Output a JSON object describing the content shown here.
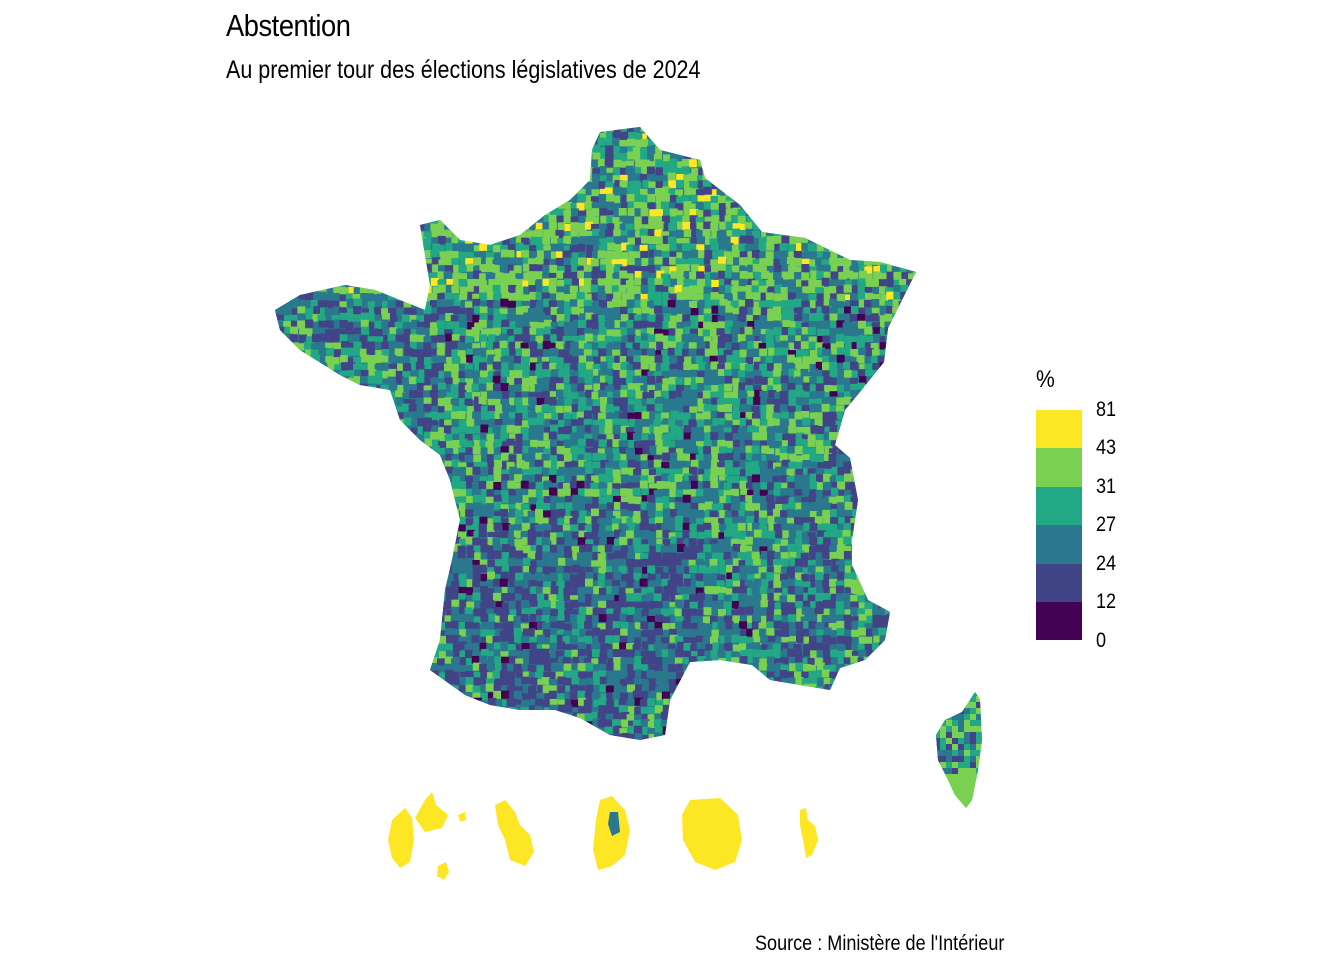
{
  "title": "Abstention",
  "subtitle": "Au premier tour des élections législatives de 2024",
  "source": "Source : Ministère de l'Intérieur",
  "legend": {
    "title": "%",
    "classes": [
      {
        "label": "81",
        "color": "#FDE725"
      },
      {
        "label": "43",
        "color": "#7AD151"
      },
      {
        "label": "31",
        "color": "#22A884"
      },
      {
        "label": "27",
        "color": "#2A788E"
      },
      {
        "label": "24",
        "color": "#414487"
      },
      {
        "label": "12",
        "color": "#440154"
      },
      {
        "label": "0",
        "color": ""
      }
    ]
  },
  "regions": [
    {
      "name": "metropole",
      "dominant_class": "mixed"
    },
    {
      "name": "corse",
      "dominant_class": "mixed"
    },
    {
      "name": "guadeloupe",
      "dominant_class": "81"
    },
    {
      "name": "martinique",
      "dominant_class": "81"
    },
    {
      "name": "guyane",
      "dominant_class": "81"
    },
    {
      "name": "la-reunion",
      "dominant_class": "81"
    },
    {
      "name": "mayotte",
      "dominant_class": "81"
    }
  ]
}
